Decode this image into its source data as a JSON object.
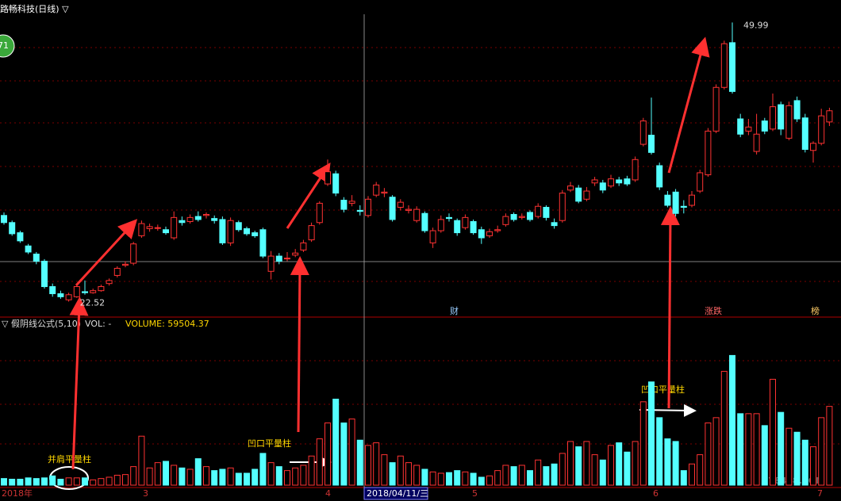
{
  "chart_data": {
    "type": "candlestick",
    "title": "路畅科技(日线) ▽",
    "badge": "71",
    "low_label": "22.52",
    "high_label": "49.99",
    "ylim": [
      21,
      52.2
    ],
    "open": [
      31.0,
      30.3,
      29.3,
      28.0,
      27.2,
      26.5,
      24.0,
      23.3,
      22.7,
      23.0,
      23.5,
      23.4,
      23.6,
      24.3,
      25.1,
      26.1,
      26.3,
      29.0,
      29.7,
      29.8,
      29.6,
      28.8,
      30.5,
      30.4,
      30.9,
      31.0,
      30.7,
      30.6,
      28.3,
      30.3,
      29.7,
      29.3,
      29.6,
      25.5,
      27.0,
      26.8,
      27.1,
      27.6,
      28.6,
      30.3,
      34.1,
      35.1,
      32.5,
      32.2,
      31.5,
      31.0,
      33.0,
      33.2,
      32.8,
      31.8,
      31.5,
      30.5,
      31.2,
      28.3,
      29.5,
      30.8,
      30.5,
      29.8,
      30.4,
      29.6,
      29.0,
      29.5,
      30.1,
      31.1,
      30.8,
      31.3,
      30.9,
      31.8,
      30.3,
      30.5,
      33.5,
      33.7,
      32.6,
      34.2,
      34.2,
      33.9,
      34.5,
      34.6,
      34.5,
      38.0,
      38.9,
      35.9,
      33.0,
      33.3,
      31.9,
      32.0,
      33.4,
      35.0,
      39.3,
      43.6,
      48.0,
      40.5,
      39.3,
      37.3,
      40.3,
      39.5,
      41.9,
      38.6,
      42.3,
      40.6,
      37.4,
      38.1,
      40.2
    ],
    "close": [
      30.3,
      29.2,
      28.5,
      27.4,
      26.5,
      24.0,
      23.3,
      23.0,
      23.2,
      24.0,
      23.4,
      23.6,
      24.0,
      24.6,
      25.8,
      26.2,
      28.2,
      30.2,
      29.9,
      29.8,
      29.3,
      30.8,
      30.3,
      30.8,
      30.6,
      31.1,
      30.5,
      28.3,
      30.5,
      29.6,
      29.2,
      29.0,
      27.0,
      27.0,
      26.5,
      26.8,
      27.3,
      28.3,
      30.0,
      32.2,
      35.3,
      33.2,
      31.6,
      32.4,
      31.4,
      32.6,
      34.0,
      33.3,
      30.6,
      32.3,
      31.6,
      31.6,
      29.5,
      29.5,
      30.6,
      30.7,
      29.3,
      30.8,
      29.3,
      28.8,
      29.4,
      29.6,
      30.9,
      30.6,
      30.9,
      30.6,
      31.9,
      30.8,
      30.0,
      33.2,
      33.9,
      32.4,
      33.4,
      34.5,
      33.5,
      34.6,
      34.2,
      34.1,
      36.5,
      40.3,
      37.2,
      33.8,
      32.0,
      31.2,
      31.8,
      33.0,
      35.2,
      39.3,
      43.6,
      47.9,
      43.2,
      39.0,
      39.7,
      39.0,
      39.3,
      41.7,
      39.5,
      41.8,
      40.5,
      37.5,
      38.1,
      40.8,
      41.3
    ],
    "high": [
      31.3,
      30.5,
      29.5,
      28.2,
      27.4,
      26.7,
      24.3,
      23.6,
      23.4,
      24.2,
      24.6,
      23.8,
      24.2,
      24.8,
      26.0,
      26.5,
      28.4,
      30.5,
      30.2,
      30.1,
      29.9,
      31.4,
      30.9,
      31.1,
      31.4,
      31.3,
      31.0,
      30.9,
      30.8,
      30.5,
      29.9,
      29.5,
      29.8,
      27.5,
      27.3,
      27.4,
      27.7,
      28.6,
      30.3,
      32.4,
      36.5,
      35.4,
      32.8,
      33.0,
      32.0,
      32.9,
      34.3,
      33.7,
      33.0,
      32.6,
      32.0,
      31.9,
      31.4,
      29.8,
      31.0,
      31.2,
      30.7,
      31.1,
      30.6,
      29.9,
      29.7,
      30.0,
      31.2,
      31.3,
      31.2,
      31.5,
      32.2,
      32.0,
      30.7,
      33.5,
      34.3,
      34.0,
      33.8,
      34.8,
      34.5,
      35.0,
      34.8,
      34.9,
      36.8,
      40.6,
      42.6,
      36.2,
      33.4,
      33.6,
      32.5,
      33.4,
      35.5,
      39.6,
      43.9,
      48.2,
      49.99,
      41.0,
      40.5,
      41.0,
      40.6,
      43.0,
      42.2,
      42.2,
      42.7,
      41.0,
      38.3,
      41.5,
      41.6
    ],
    "low": [
      30.1,
      29.0,
      28.3,
      27.2,
      26.2,
      23.8,
      23.0,
      22.8,
      22.52,
      22.9,
      23.2,
      23.3,
      23.5,
      24.1,
      24.9,
      25.9,
      26.1,
      28.8,
      29.4,
      29.5,
      29.1,
      28.6,
      30.0,
      30.2,
      30.4,
      30.7,
      30.2,
      28.1,
      28.0,
      29.4,
      29.0,
      28.8,
      26.8,
      24.7,
      26.2,
      26.5,
      26.9,
      27.4,
      28.4,
      30.1,
      33.9,
      32.9,
      31.3,
      31.9,
      31.0,
      30.8,
      32.8,
      32.8,
      30.4,
      31.5,
      31.2,
      30.3,
      29.3,
      27.8,
      29.3,
      30.4,
      29.0,
      29.6,
      29.1,
      28.2,
      28.8,
      29.3,
      29.9,
      30.4,
      30.6,
      30.4,
      30.7,
      30.5,
      29.7,
      30.3,
      33.3,
      32.2,
      32.4,
      33.9,
      33.2,
      33.7,
      33.9,
      33.9,
      34.3,
      37.8,
      37.0,
      33.5,
      31.8,
      30.9,
      31.2,
      31.8,
      33.2,
      34.8,
      39.1,
      43.4,
      43.0,
      38.7,
      38.9,
      37.0,
      39.0,
      39.3,
      38.9,
      38.4,
      40.2,
      37.2,
      36.2,
      37.9,
      39.8
    ],
    "indicator_label": "▽ 假阴线公式(5,10)",
    "vol_label": "VOL: -",
    "volume_label": "VOLUME: 59504.37",
    "vlim": [
      0,
      115000
    ],
    "volume": [
      5000,
      4500,
      4500,
      5500,
      5000,
      5500,
      7000,
      4500,
      5500,
      5500,
      5500,
      4000,
      5000,
      6000,
      7500,
      8000,
      14000,
      37000,
      13000,
      17000,
      18000,
      15000,
      13000,
      12000,
      20000,
      14000,
      11000,
      12000,
      13000,
      9000,
      9000,
      12000,
      24000,
      17000,
      14000,
      11000,
      13000,
      15000,
      22000,
      35000,
      47000,
      65000,
      47000,
      50000,
      34000,
      30000,
      32000,
      23000,
      17000,
      22000,
      17000,
      15000,
      12000,
      10000,
      9000,
      9500,
      11000,
      10000,
      9000,
      6000,
      7000,
      11000,
      15000,
      14000,
      15000,
      11000,
      19000,
      14000,
      16000,
      24000,
      33000,
      29000,
      33000,
      23000,
      19000,
      30000,
      32000,
      25000,
      33000,
      63000,
      78000,
      51000,
      35000,
      33000,
      11000,
      16000,
      23000,
      47000,
      51000,
      86000,
      98000,
      54000,
      54000,
      54000,
      45000,
      80000,
      55000,
      43000,
      40000,
      34000,
      29000,
      51000,
      59504.37
    ],
    "up_color": "#ff3232",
    "down_color": "#54ffff",
    "x_labels": [
      "2018年",
      "3",
      "4",
      "2018/04/11/三",
      "5",
      "6",
      "7"
    ],
    "markers": [
      "财",
      "涨跌",
      "榜"
    ],
    "annotations": [
      "并肩平量柱",
      "凹口平量柱",
      "凹口平量柱"
    ],
    "watermark": "178448.COM"
  }
}
